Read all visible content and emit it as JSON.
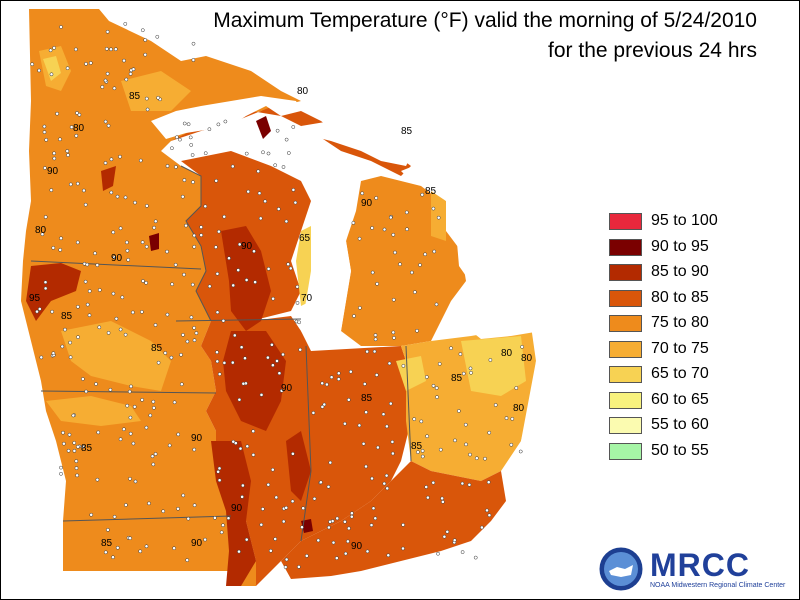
{
  "title": {
    "line1": "Maximum Temperature (°F) valid the morning of 5/24/2010",
    "line2": "for the previous 24 hrs"
  },
  "legend": [
    {
      "label": "95 to 100",
      "color": "#e8283c"
    },
    {
      "label": "90 to 95",
      "color": "#7a0000"
    },
    {
      "label": "85 to 90",
      "color": "#b32a00"
    },
    {
      "label": "80 to 85",
      "color": "#d9560a"
    },
    {
      "label": "75 to 80",
      "color": "#ee8b1c"
    },
    {
      "label": "70 to 75",
      "color": "#f6ad33"
    },
    {
      "label": "65 to 70",
      "color": "#f7d253"
    },
    {
      "label": "60 to 65",
      "color": "#f8f27e"
    },
    {
      "label": "55 to 60",
      "color": "#fbfbb0"
    },
    {
      "label": "50 to 55",
      "color": "#a6f5a6"
    }
  ],
  "map_labels": [
    "80",
    "85",
    "90",
    "95",
    "65",
    "70"
  ],
  "logo": {
    "text": "MRCC",
    "subtitle": "NOAA Midwestern Regional Climate Center"
  }
}
